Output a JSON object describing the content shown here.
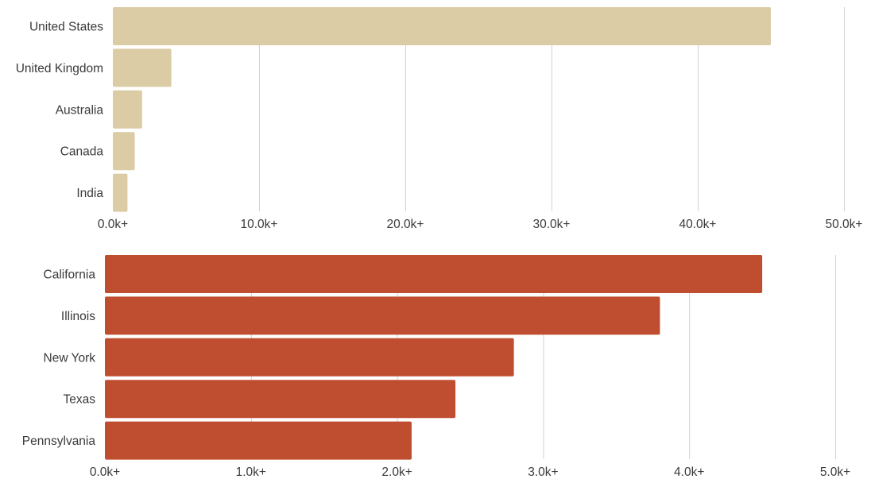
{
  "chart_data": [
    {
      "type": "bar",
      "orientation": "horizontal",
      "categories": [
        "United States",
        "United Kingdom",
        "Australia",
        "Canada",
        "India"
      ],
      "values": [
        45000,
        4000,
        2000,
        1500,
        1000
      ],
      "xlim": [
        0,
        50000
      ],
      "ticks": [
        0,
        10000,
        20000,
        30000,
        40000,
        50000
      ],
      "tick_labels": [
        "0.0k+",
        "10.0k+",
        "20.0k+",
        "30.0k+",
        "40.0k+",
        "50.0k+"
      ],
      "color": "#dbcca5",
      "grid": "vertical",
      "title": "",
      "xlabel": "",
      "ylabel": ""
    },
    {
      "type": "bar",
      "orientation": "horizontal",
      "categories": [
        "California",
        "Illinois",
        "New York",
        "Texas",
        "Pennsylvania"
      ],
      "values": [
        4500,
        3800,
        2800,
        2400,
        2100
      ],
      "xlim": [
        0,
        5000
      ],
      "ticks": [
        0,
        1000,
        2000,
        3000,
        4000,
        5000
      ],
      "tick_labels": [
        "0.0k+",
        "1.0k+",
        "2.0k+",
        "3.0k+",
        "4.0k+",
        "5.0k+"
      ],
      "color": "#bf4e30",
      "grid": "vertical",
      "title": "",
      "xlabel": "",
      "ylabel": ""
    }
  ]
}
